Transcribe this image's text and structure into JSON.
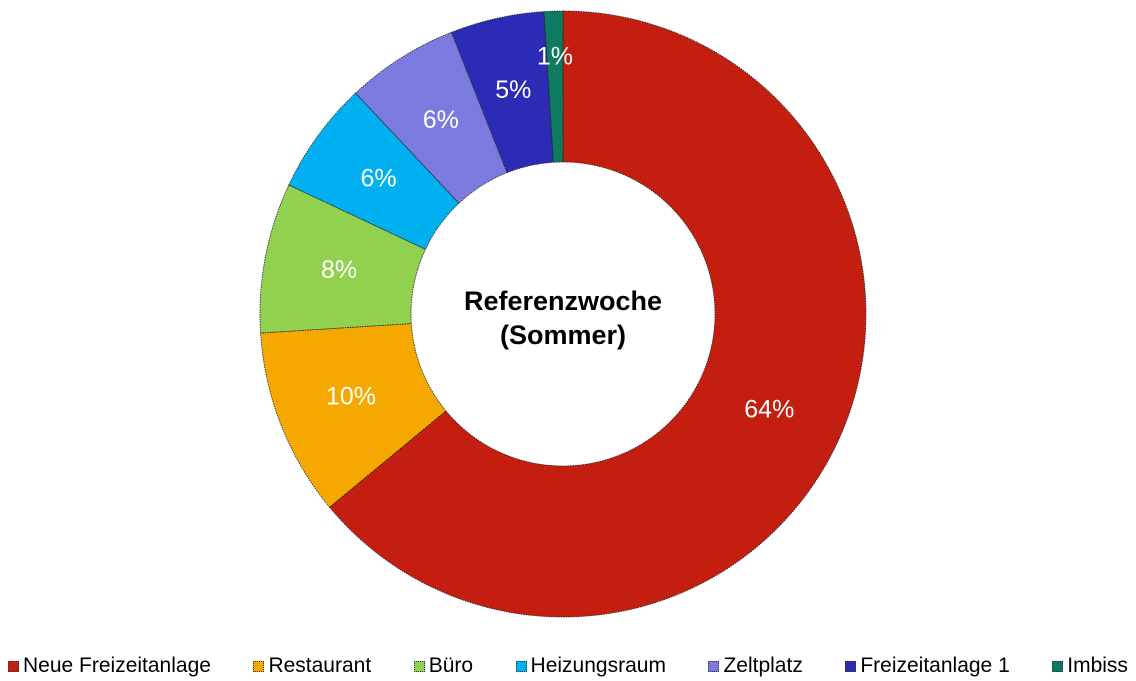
{
  "chart_data": {
    "type": "donut",
    "title": "Referenzwoche (Sommer)",
    "categories": [
      "Neue Freizeitanlage",
      "Restaurant",
      "Büro",
      "Heizungsraum",
      "Zeltplatz",
      "Freizeitanlage 1",
      "Imbiss"
    ],
    "values": [
      64,
      10,
      8,
      6,
      6,
      5,
      1
    ],
    "value_labels": [
      "64%",
      "10%",
      "8%",
      "6%",
      "6%",
      "5%",
      "1%"
    ],
    "colors": [
      "#c41e10",
      "#f5a800",
      "#92d050",
      "#00b0f0",
      "#7b7bdf",
      "#2b2bb5",
      "#0e7a5f"
    ],
    "legend": "bottom"
  }
}
